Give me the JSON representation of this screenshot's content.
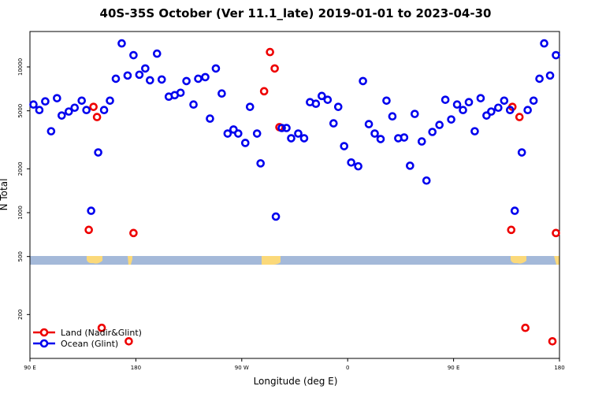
{
  "chart_data": {
    "type": "scatter",
    "title": "40S-35S October (Ver 11.1_late)   2019-01-01 to 2023-04-30",
    "x_label": "Longitude (deg E)",
    "y_label": "N Total",
    "log_y": true,
    "legend": "bottom left",
    "xlim": [
      90,
      540
    ],
    "xticks": [
      {
        "value": 90,
        "label": "90 E"
      },
      {
        "value": 180,
        "label": "180"
      },
      {
        "value": 270,
        "label": "90 W"
      },
      {
        "value": 360,
        "label": "0"
      },
      {
        "value": 450,
        "label": "90 E"
      },
      {
        "value": 540,
        "label": "180"
      }
    ],
    "ylim": [
      100,
      17500
    ],
    "yticks": [
      200,
      500,
      1000,
      2000,
      5000,
      10000
    ],
    "series": [
      {
        "name": "Land (Nadir&Glint)",
        "color": "#ee0000",
        "x": [
          140,
          144,
          147,
          151,
          174,
          178,
          289,
          294,
          298,
          302,
          499,
          500,
          506,
          511,
          534,
          537
        ],
        "values": [
          762,
          5320,
          4530,
          162,
          131,
          725,
          6810,
          12650,
          9760,
          3860,
          762,
          5320,
          4530,
          162,
          131,
          725
        ]
      },
      {
        "name": "Ocean (Glint)",
        "color": "#0000ee",
        "x": [
          93,
          98,
          103,
          108,
          113,
          117,
          123,
          128,
          134,
          138,
          142,
          148,
          153,
          158,
          163,
          168,
          173,
          178,
          183,
          188,
          192,
          198,
          202,
          208,
          213,
          218,
          223,
          229,
          233,
          239,
          243,
          248,
          253,
          258,
          263,
          267,
          273,
          277,
          283,
          286,
          299,
          304,
          308,
          312,
          318,
          323,
          328,
          333,
          338,
          343,
          348,
          352,
          357,
          363,
          369,
          373,
          378,
          383,
          388,
          393,
          398,
          403,
          408,
          413,
          417,
          423,
          427,
          432,
          438,
          443,
          448,
          453,
          458,
          463,
          468,
          473,
          478,
          482,
          488,
          493,
          498,
          502,
          508,
          513,
          518,
          523,
          527,
          532,
          537
        ],
        "values": [
          5520,
          5060,
          5800,
          3620,
          6100,
          4640,
          4940,
          5250,
          5870,
          5060,
          1030,
          2590,
          5060,
          5870,
          8300,
          14500,
          8730,
          12040,
          8840,
          9760,
          8100,
          12340,
          8200,
          6250,
          6400,
          6650,
          8000,
          5520,
          8300,
          8510,
          4420,
          9760,
          6570,
          3490,
          3720,
          3490,
          3010,
          5320,
          3490,
          2180,
          940,
          3810,
          3810,
          3240,
          3490,
          3240,
          5730,
          5590,
          6320,
          5950,
          4100,
          5320,
          2860,
          2210,
          2080,
          8000,
          4050,
          3490,
          3200,
          5870,
          4580,
          3240,
          3280,
          2100,
          4760,
          3080,
          1660,
          3580,
          4000,
          5950,
          4360,
          5520,
          5060,
          5730,
          3620,
          6100,
          4640,
          4940,
          5250,
          5870,
          5060,
          1030,
          2590,
          5060,
          5870,
          8300,
          14500,
          8730,
          12040
        ]
      }
    ]
  }
}
